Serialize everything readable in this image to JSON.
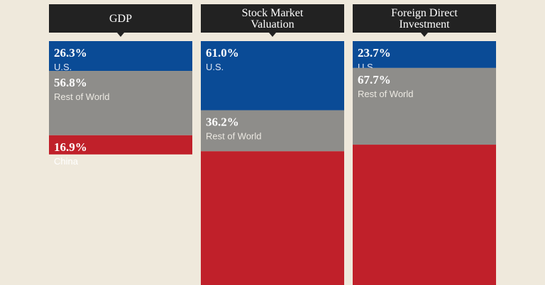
{
  "chart_data": {
    "type": "stacked-bar",
    "title": "",
    "categories": [
      "GDP",
      "Stock Market Valuation",
      "Foreign Direct Investment"
    ],
    "header_lines": [
      [
        "GDP"
      ],
      [
        "Stock Market",
        "Valuation"
      ],
      [
        "Foreign Direct",
        "Investment"
      ]
    ],
    "series": [
      {
        "name": "U.S.",
        "color": "#0a4b96",
        "text_color": "#ffffff",
        "sub_color": "#dfe6f2",
        "values": [
          26.3,
          61.0,
          23.7
        ],
        "labels": [
          "26.3%",
          "61.0%",
          "23.7%"
        ]
      },
      {
        "name": "Rest of World",
        "color": "#8e8d8a",
        "text_color": "#ffffff",
        "sub_color": "#ece9e2",
        "values": [
          56.8,
          36.2,
          67.7
        ],
        "labels": [
          "56.8%",
          "36.2%",
          "67.7%"
        ]
      },
      {
        "name": "China",
        "color": "#c0202a",
        "text_color": "#ffffff",
        "sub_color": "#ffffff",
        "values": [
          16.9,
          null,
          null
        ],
        "labels": [
          "16.9%",
          null,
          null
        ]
      }
    ],
    "header_color": "#222222",
    "background": "#efe9dc"
  }
}
